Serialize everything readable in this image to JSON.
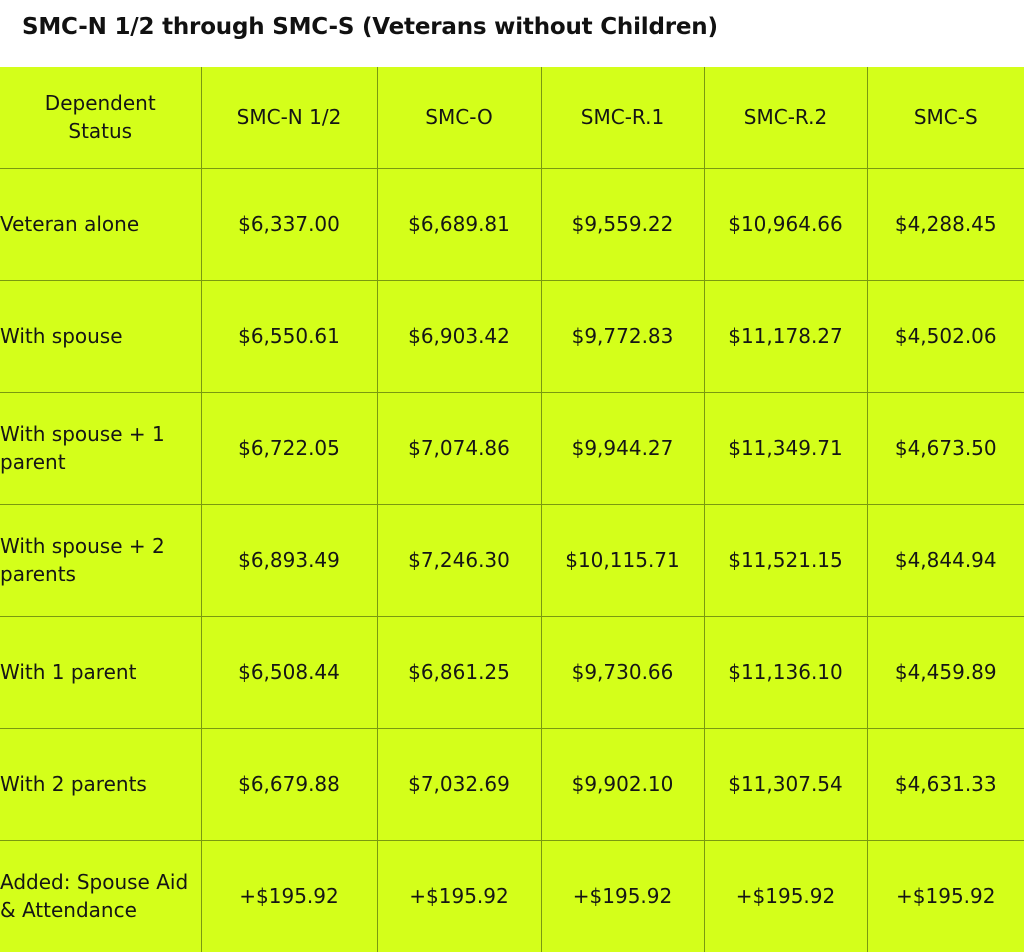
{
  "title": "SMC-N 1/2 through SMC-S (Veterans without Children)",
  "colors": {
    "table_background": "#d4ff1a",
    "grid_line": "#7a9a10",
    "text": "#151515"
  },
  "table": {
    "headers": [
      "Dependent Status",
      "SMC-N 1/2",
      "SMC-O",
      "SMC-R.1",
      "SMC-R.2",
      "SMC-S"
    ],
    "header_lines": [
      [
        "Dependent",
        "Status"
      ]
    ],
    "rows": [
      {
        "label": "Veteran alone",
        "values": [
          "$6,337.00",
          "$6,689.81",
          "$9,559.22",
          "$10,964.66",
          "$4,288.45"
        ]
      },
      {
        "label": "With spouse",
        "values": [
          "$6,550.61",
          "$6,903.42",
          "$9,772.83",
          "$11,178.27",
          "$4,502.06"
        ]
      },
      {
        "label": "With spouse + 1 parent",
        "values": [
          "$6,722.05",
          "$7,074.86",
          "$9,944.27",
          "$11,349.71",
          "$4,673.50"
        ]
      },
      {
        "label": "With spouse + 2 parents",
        "values": [
          "$6,893.49",
          "$7,246.30",
          "$10,115.71",
          "$11,521.15",
          "$4,844.94"
        ]
      },
      {
        "label": "With 1 parent",
        "values": [
          "$6,508.44",
          "$6,861.25",
          "$9,730.66",
          "$11,136.10",
          "$4,459.89"
        ]
      },
      {
        "label": "With 2 parents",
        "values": [
          "$6,679.88",
          "$7,032.69",
          "$9,902.10",
          "$11,307.54",
          "$4,631.33"
        ]
      },
      {
        "label": "Added: Spouse Aid & Attendance",
        "values": [
          "+$195.92",
          "+$195.92",
          "+$195.92",
          "+$195.92",
          "+$195.92"
        ]
      }
    ]
  }
}
